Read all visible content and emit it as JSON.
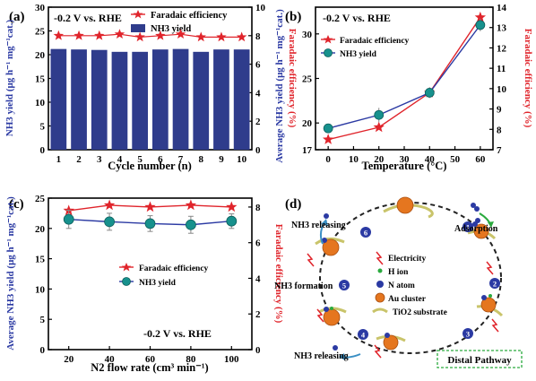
{
  "colors": {
    "blue": "#2b3aa3",
    "red": "#e0242b",
    "bar": "#2f3c8c",
    "teal": "#17918d",
    "gold": "#e5a21f",
    "gray": "#888888",
    "green": "#2aaa3e"
  },
  "chart_data": [
    {
      "panel": "(a)",
      "type": "bar",
      "condition": "-0.2 V vs. RHE",
      "xlabel": "Cycle number (n)",
      "ylabel": "NH3 yield (μg h⁻¹ mg⁻¹cat.)",
      "ylabel_right": "Faradaic efficiency (%)",
      "categories": [
        "1",
        "2",
        "3",
        "4",
        "5",
        "6",
        "7",
        "8",
        "9",
        "10"
      ],
      "ylim": [
        0,
        30
      ],
      "yticks": [
        0,
        5,
        10,
        15,
        20,
        25,
        30
      ],
      "ylim_right": [
        0,
        10
      ],
      "yticks_right": [
        0,
        2,
        4,
        6,
        8,
        10
      ],
      "series": [
        {
          "name": "NH3 yield",
          "axis": "left",
          "values": [
            21.2,
            21.1,
            21.0,
            20.6,
            20.6,
            21.1,
            21.2,
            20.6,
            21.1,
            21.1
          ]
        },
        {
          "name": "Faradaic efficiency",
          "axis": "right",
          "values": [
            8.0,
            8.0,
            8.0,
            8.1,
            7.9,
            8.0,
            8.1,
            7.9,
            7.9,
            7.9
          ]
        }
      ],
      "legend": [
        "Faradaic efficiency",
        "NH3 yield"
      ],
      "legend_position": "top-right"
    },
    {
      "panel": "(b)",
      "type": "line",
      "condition": "-0.2 V vs. RHE",
      "xlabel": "Temperature (°C)",
      "ylabel": "Average NH3 yield (μg h⁻¹ mg⁻¹cat.)",
      "ylabel_right": "Faradaic efficiency (%)",
      "x": [
        0,
        20,
        40,
        60
      ],
      "xlim": [
        -5,
        65
      ],
      "xticks": [
        0,
        10,
        20,
        30,
        40,
        50,
        60
      ],
      "ylim": [
        17,
        33
      ],
      "yticks": [
        17,
        20,
        25,
        30
      ],
      "ylim_right": [
        7,
        14
      ],
      "yticks_right": [
        7,
        8,
        9,
        10,
        11,
        12,
        13,
        14
      ],
      "series": [
        {
          "name": "Faradaic efficiency",
          "axis": "right",
          "values": [
            7.5,
            8.1,
            9.8,
            13.5
          ]
        },
        {
          "name": "NH3 yield",
          "axis": "left",
          "values": [
            19.4,
            20.9,
            23.4,
            31.0
          ],
          "errors": [
            0.5,
            0.8,
            0.6,
            0.7
          ]
        }
      ],
      "legend": [
        "Faradaic efficiency",
        "NH3 yield"
      ],
      "legend_position": "top-left"
    },
    {
      "panel": "(c)",
      "type": "line",
      "condition": "-0.2 V vs. RHE",
      "xlabel": "N2 flow rate (cm³ min⁻¹)",
      "ylabel": "Average NH3 yield (μg h⁻¹ mg⁻¹cat.)",
      "ylabel_right": "Faradaic efficiency (%)",
      "x": [
        20,
        40,
        60,
        80,
        100
      ],
      "xlim": [
        10,
        110
      ],
      "xticks": [
        20,
        40,
        60,
        80,
        100
      ],
      "ylim": [
        0,
        25
      ],
      "yticks": [
        0,
        5,
        10,
        15,
        20,
        25
      ],
      "ylim_right": [
        0,
        8.5
      ],
      "yticks_right": [
        0,
        2,
        4,
        6,
        8
      ],
      "series": [
        {
          "name": "Faradaic efficiency",
          "axis": "right",
          "values": [
            7.8,
            8.1,
            8.0,
            8.1,
            8.0
          ]
        },
        {
          "name": "NH3 yield",
          "axis": "left",
          "values": [
            21.5,
            21.1,
            20.8,
            20.6,
            21.2
          ],
          "errors": [
            1.5,
            1.4,
            1.3,
            1.4,
            1.2
          ]
        }
      ],
      "legend": [
        "Faradaic efficiency",
        "NH3 yield"
      ],
      "legend_position": "center"
    }
  ],
  "panels": {
    "a": {
      "label": "(a)",
      "condition": "-0.2 V vs. RHE",
      "legend_fe": "Faradaic efficiency",
      "legend_nh3": "NH3 yield",
      "xlabel": "Cycle number (n)",
      "ylabel": "NH3 yield (μg h⁻¹ mg⁻¹cat.)",
      "ylabel_right": "Faradaic efficiency (%)"
    },
    "b": {
      "label": "(b)",
      "condition": "-0.2 V vs. RHE",
      "legend_fe": "Faradaic efficiency",
      "legend_nh3": "NH3 yield",
      "xlabel": "Temperature (°C)",
      "ylabel": "Average NH3 yield (μg h⁻¹ mg⁻¹cat.)",
      "ylabel_right": "Faradaic efficiency (%)"
    },
    "c": {
      "label": "(c)",
      "condition": "-0.2 V vs. RHE",
      "legend_fe": "Faradaic efficiency",
      "legend_nh3": "NH3 yield",
      "xlabel": "N2 flow rate (cm³ min⁻¹)",
      "ylabel": "Average NH3 yield (μg h⁻¹ mg⁻¹cat.)",
      "ylabel_right": "Faradaic efficiency (%)"
    },
    "d": {
      "label": "(d)",
      "title": "Distal Pathway",
      "steps": [
        "1",
        "2",
        "3",
        "4",
        "5",
        "6"
      ],
      "labels": {
        "adsorption": "Adsorption",
        "releasing_top": "NH3 releasing",
        "formation": "NH3 formation",
        "releasing_bottom": "NH3 releasing"
      },
      "legend": {
        "electricity": "Electricity",
        "h_ion": "H ion",
        "n_atom": "N atom",
        "au_cluster": "Au cluster",
        "tio2": "TiO2 substrate"
      }
    }
  }
}
